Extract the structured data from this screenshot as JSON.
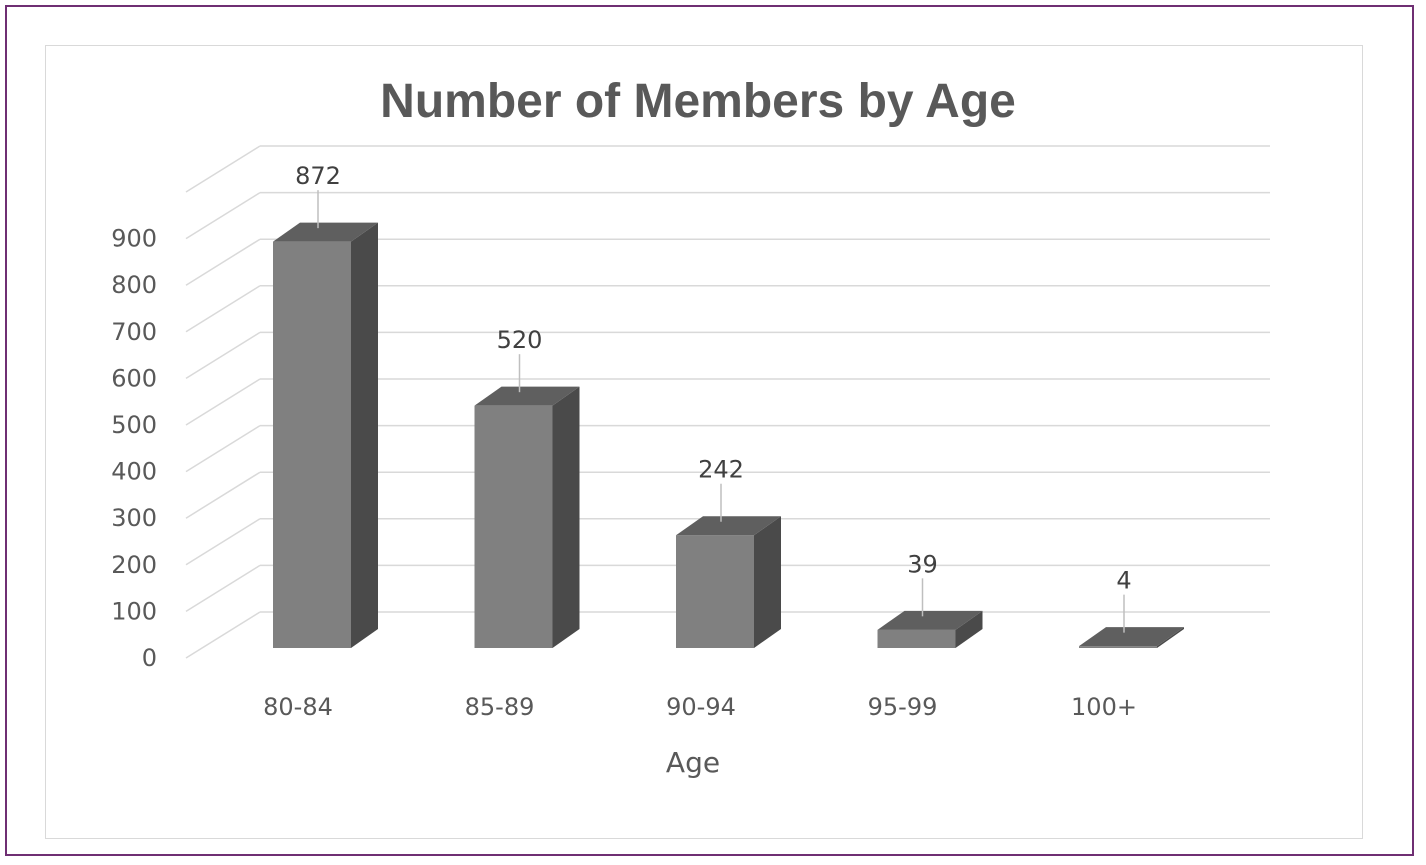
{
  "chart_data": {
    "type": "bar",
    "title": "Number of Members by Age",
    "xlabel": "Age",
    "ylabel": "",
    "categories": [
      "80-84",
      "85-89",
      "90-94",
      "95-99",
      "100+"
    ],
    "values": [
      872,
      520,
      242,
      39,
      4
    ],
    "ylim": [
      0,
      900
    ],
    "yticks": [
      "0",
      "100",
      "200",
      "300",
      "400",
      "500",
      "600",
      "700",
      "800",
      "900"
    ],
    "grid": true,
    "legend": "none",
    "style": "3d-column",
    "colors": {
      "front": "#808080",
      "top": "#5f5f5f",
      "side": "#4a4a4a",
      "gridline": "#d9d9d9",
      "frame_border": "#6f2f73"
    }
  }
}
